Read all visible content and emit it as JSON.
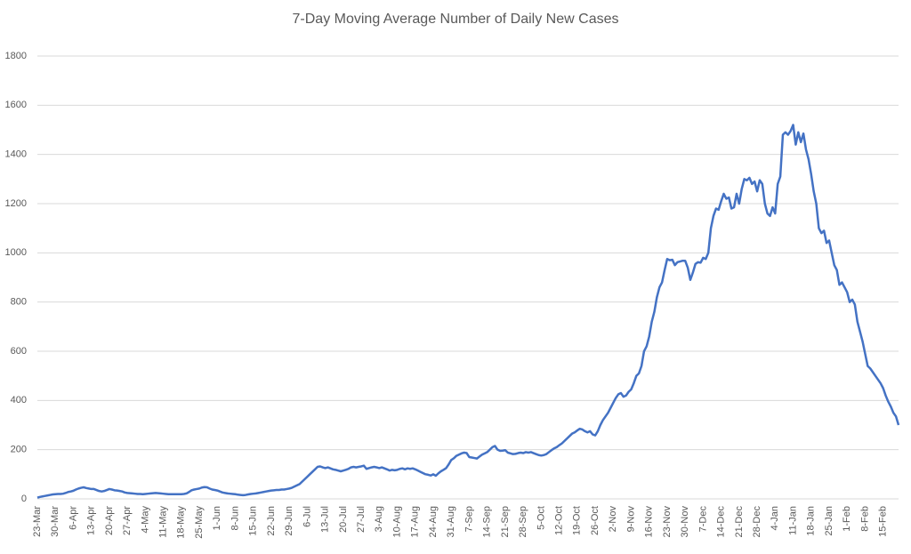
{
  "chart_data": {
    "type": "line",
    "title": "7-Day Moving Average Number of Daily New Cases",
    "categories": [
      "23-Mar",
      null,
      null,
      null,
      null,
      null,
      null,
      "30-Mar",
      null,
      null,
      null,
      null,
      null,
      null,
      "6-Apr",
      null,
      null,
      null,
      null,
      null,
      null,
      "13-Apr",
      null,
      null,
      null,
      null,
      null,
      null,
      "20-Apr",
      null,
      null,
      null,
      null,
      null,
      null,
      "27-Apr",
      null,
      null,
      null,
      null,
      null,
      null,
      "4-May",
      null,
      null,
      null,
      null,
      null,
      null,
      "11-May",
      null,
      null,
      null,
      null,
      null,
      null,
      "18-May",
      null,
      null,
      null,
      null,
      null,
      null,
      "25-May",
      null,
      null,
      null,
      null,
      null,
      null,
      "1-Jun",
      null,
      null,
      null,
      null,
      null,
      null,
      "8-Jun",
      null,
      null,
      null,
      null,
      null,
      null,
      "15-Jun",
      null,
      null,
      null,
      null,
      null,
      null,
      "22-Jun",
      null,
      null,
      null,
      null,
      null,
      null,
      "29-Jun",
      null,
      null,
      null,
      null,
      null,
      null,
      "6-Jul",
      null,
      null,
      null,
      null,
      null,
      null,
      "13-Jul",
      null,
      null,
      null,
      null,
      null,
      null,
      "20-Jul",
      null,
      null,
      null,
      null,
      null,
      null,
      "27-Jul",
      null,
      null,
      null,
      null,
      null,
      null,
      "3-Aug",
      null,
      null,
      null,
      null,
      null,
      null,
      "10-Aug",
      null,
      null,
      null,
      null,
      null,
      null,
      "17-Aug",
      null,
      null,
      null,
      null,
      null,
      null,
      "24-Aug",
      null,
      null,
      null,
      null,
      null,
      null,
      "31-Aug",
      null,
      null,
      null,
      null,
      null,
      null,
      "7-Sep",
      null,
      null,
      null,
      null,
      null,
      null,
      "14-Sep",
      null,
      null,
      null,
      null,
      null,
      null,
      "21-Sep",
      null,
      null,
      null,
      null,
      null,
      null,
      "28-Sep",
      null,
      null,
      null,
      null,
      null,
      null,
      "5-Oct",
      null,
      null,
      null,
      null,
      null,
      null,
      "12-Oct",
      null,
      null,
      null,
      null,
      null,
      null,
      "19-Oct",
      null,
      null,
      null,
      null,
      null,
      null,
      "26-Oct",
      null,
      null,
      null,
      null,
      null,
      null,
      "2-Nov",
      null,
      null,
      null,
      null,
      null,
      null,
      "9-Nov",
      null,
      null,
      null,
      null,
      null,
      null,
      "16-Nov",
      null,
      null,
      null,
      null,
      null,
      null,
      "23-Nov",
      null,
      null,
      null,
      null,
      null,
      null,
      "30-Nov",
      null,
      null,
      null,
      null,
      null,
      null,
      "7-Dec",
      null,
      null,
      null,
      null,
      null,
      null,
      "14-Dec",
      null,
      null,
      null,
      null,
      null,
      null,
      "21-Dec",
      null,
      null,
      null,
      null,
      null,
      null,
      "28-Dec",
      null,
      null,
      null,
      null,
      null,
      null,
      "4-Jan",
      null,
      null,
      null,
      null,
      null,
      null,
      "11-Jan",
      null,
      null,
      null,
      null,
      null,
      null,
      "18-Jan",
      null,
      null,
      null,
      null,
      null,
      null,
      "25-Jan",
      null,
      null,
      null,
      null,
      null,
      null,
      "1-Feb",
      null,
      null,
      null,
      null,
      null,
      null,
      "8-Feb",
      null,
      null,
      null,
      null,
      null,
      null,
      "15-Feb",
      null,
      null,
      null,
      null,
      null,
      null
    ],
    "values": [
      5,
      8,
      10,
      12,
      14,
      16,
      18,
      19,
      20,
      20,
      21,
      24,
      28,
      30,
      33,
      38,
      42,
      45,
      47,
      44,
      42,
      40,
      40,
      36,
      32,
      30,
      32,
      36,
      40,
      38,
      35,
      34,
      32,
      30,
      26,
      24,
      23,
      22,
      21,
      20,
      20,
      19,
      20,
      21,
      22,
      23,
      24,
      23,
      22,
      21,
      20,
      19,
      19,
      19,
      19,
      19,
      19,
      20,
      22,
      28,
      35,
      38,
      40,
      42,
      46,
      48,
      47,
      42,
      38,
      36,
      34,
      30,
      26,
      24,
      22,
      21,
      20,
      19,
      17,
      16,
      15,
      16,
      18,
      20,
      21,
      22,
      24,
      26,
      28,
      30,
      32,
      34,
      35,
      36,
      36,
      38,
      38,
      40,
      42,
      45,
      50,
      55,
      60,
      70,
      80,
      90,
      100,
      110,
      120,
      130,
      132,
      128,
      125,
      128,
      124,
      120,
      118,
      115,
      112,
      115,
      118,
      122,
      128,
      130,
      128,
      130,
      132,
      135,
      122,
      125,
      128,
      130,
      128,
      125,
      128,
      124,
      120,
      115,
      118,
      116,
      118,
      122,
      124,
      120,
      124,
      122,
      124,
      120,
      115,
      110,
      105,
      100,
      98,
      95,
      100,
      94,
      104,
      112,
      118,
      125,
      140,
      158,
      165,
      175,
      180,
      185,
      188,
      186,
      170,
      168,
      166,
      164,
      172,
      180,
      185,
      190,
      200,
      210,
      215,
      200,
      195,
      196,
      198,
      188,
      185,
      182,
      183,
      186,
      188,
      186,
      190,
      188,
      190,
      186,
      182,
      178,
      176,
      178,
      182,
      190,
      198,
      205,
      210,
      218,
      225,
      235,
      245,
      255,
      265,
      270,
      278,
      285,
      282,
      275,
      270,
      275,
      262,
      258,
      275,
      300,
      320,
      335,
      350,
      370,
      390,
      410,
      425,
      430,
      415,
      420,
      435,
      445,
      470,
      500,
      510,
      540,
      600,
      620,
      660,
      720,
      760,
      820,
      860,
      880,
      930,
      975,
      970,
      972,
      950,
      962,
      965,
      968,
      968,
      940,
      890,
      920,
      955,
      962,
      960,
      980,
      975,
      1000,
      1100,
      1150,
      1180,
      1175,
      1210,
      1240,
      1220,
      1225,
      1180,
      1185,
      1240,
      1200,
      1260,
      1300,
      1295,
      1305,
      1280,
      1290,
      1250,
      1295,
      1280,
      1200,
      1160,
      1150,
      1185,
      1160,
      1280,
      1310,
      1480,
      1490,
      1480,
      1495,
      1520,
      1440,
      1490,
      1450,
      1485,
      1420,
      1380,
      1320,
      1250,
      1200,
      1100,
      1080,
      1090,
      1040,
      1050,
      1000,
      950,
      930,
      870,
      880,
      860,
      840,
      800,
      810,
      790,
      720,
      680,
      640,
      590,
      540,
      530,
      515,
      500,
      485,
      470,
      450,
      420,
      395,
      375,
      350,
      335,
      300
    ],
    "color": "#4472c4",
    "ylim": [
      0,
      1800
    ],
    "yticks": [
      0,
      200,
      400,
      600,
      800,
      1000,
      1200,
      1400,
      1600,
      1800
    ],
    "grid": true
  }
}
